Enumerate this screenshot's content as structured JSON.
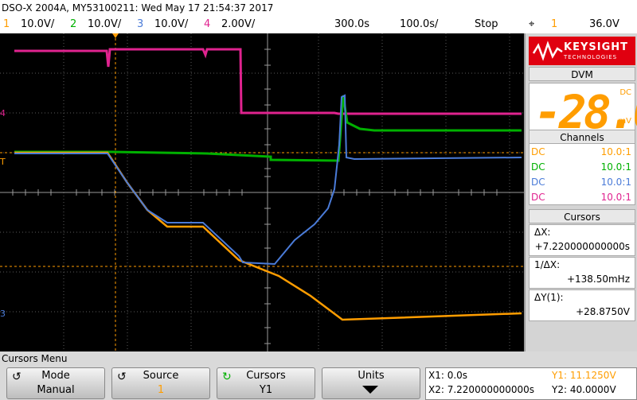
{
  "title": "DSO-X 2004A, MY53100211: Wed May 17 21:54:37 2017",
  "channels": [
    {
      "num": "1",
      "scale": "10.0V/",
      "color": "#ff9d00"
    },
    {
      "num": "2",
      "scale": "10.0V/",
      "color": "#00b000"
    },
    {
      "num": "3",
      "scale": "10.0V/",
      "color": "#4a7bd8"
    },
    {
      "num": "4",
      "scale": "2.00V/",
      "color": "#e0238f"
    }
  ],
  "timebase": {
    "position": "300.0s",
    "scale": "100.0s/",
    "run_state": "Stop"
  },
  "trigger": {
    "icon": "trigger-edge-icon",
    "glyph": "⌖",
    "source": "1",
    "level": "36.0V"
  },
  "logo": {
    "name": "KEYSIGHT",
    "sub": "TECHNOLOGIES"
  },
  "dvm": {
    "header": "DVM",
    "value": "-28.0",
    "coupling": "DC",
    "unit": "mV"
  },
  "channels_panel": {
    "header": "Channels",
    "rows": [
      {
        "coupling": "DC",
        "probe": "10.0:1",
        "color": "#ff9d00"
      },
      {
        "coupling": "DC",
        "probe": "10.0:1",
        "color": "#00b000"
      },
      {
        "coupling": "DC",
        "probe": "10.0:1",
        "color": "#4a7bd8"
      },
      {
        "coupling": "DC",
        "probe": "10.0:1",
        "color": "#e0238f"
      }
    ]
  },
  "cursors_panel": {
    "header": "Cursors",
    "dx_label": "ΔX:",
    "dx_value": "+7.220000000000s",
    "inv_dx_label": "1/ΔX:",
    "inv_dx_value": "+138.50mHz",
    "dy_label": "ΔY(1):",
    "dy_value": "+28.8750V"
  },
  "softkeys": {
    "menu_title": "Cursors Menu",
    "mode_label": "Mode",
    "mode_value": "Manual",
    "source_label": "Source",
    "source_value": "1",
    "cursors_label": "Cursors",
    "cursors_value": "Y1",
    "units_label": "Units"
  },
  "readout": {
    "x1": "X1: 0.0s",
    "x2": "X2: 7.220000000000s",
    "y1": "Y1: 11.1250V",
    "y2": "Y2: 40.0000V"
  },
  "markers": {
    "ch4": "4",
    "ch3": "3",
    "trigger": "T"
  }
}
